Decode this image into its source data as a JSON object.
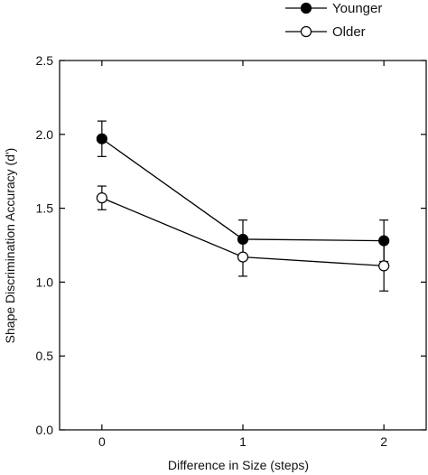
{
  "chart_data": {
    "type": "line",
    "xlabel": "Difference in Size (steps)",
    "ylabel": "Shape Discrimination Accuracy (d')",
    "xlim": [
      -0.3,
      2.3
    ],
    "ylim": [
      0.0,
      2.5
    ],
    "x": [
      0,
      1,
      2
    ],
    "x_ticks": [
      "0",
      "1",
      "2"
    ],
    "y_ticks": [
      "0.0",
      "0.5",
      "1.0",
      "1.5",
      "2.0",
      "2.5"
    ],
    "grid": false,
    "legend_position": "top-right, outside plot",
    "series": [
      {
        "name": "Younger",
        "marker": "filled-circle",
        "color": "#000000",
        "values": [
          1.97,
          1.29,
          1.28
        ],
        "error": [
          0.12,
          0.13,
          0.14
        ]
      },
      {
        "name": "Older",
        "marker": "open-circle",
        "color": "#000000",
        "values": [
          1.57,
          1.17,
          1.11
        ],
        "error": [
          0.08,
          0.13,
          0.17
        ]
      }
    ]
  }
}
